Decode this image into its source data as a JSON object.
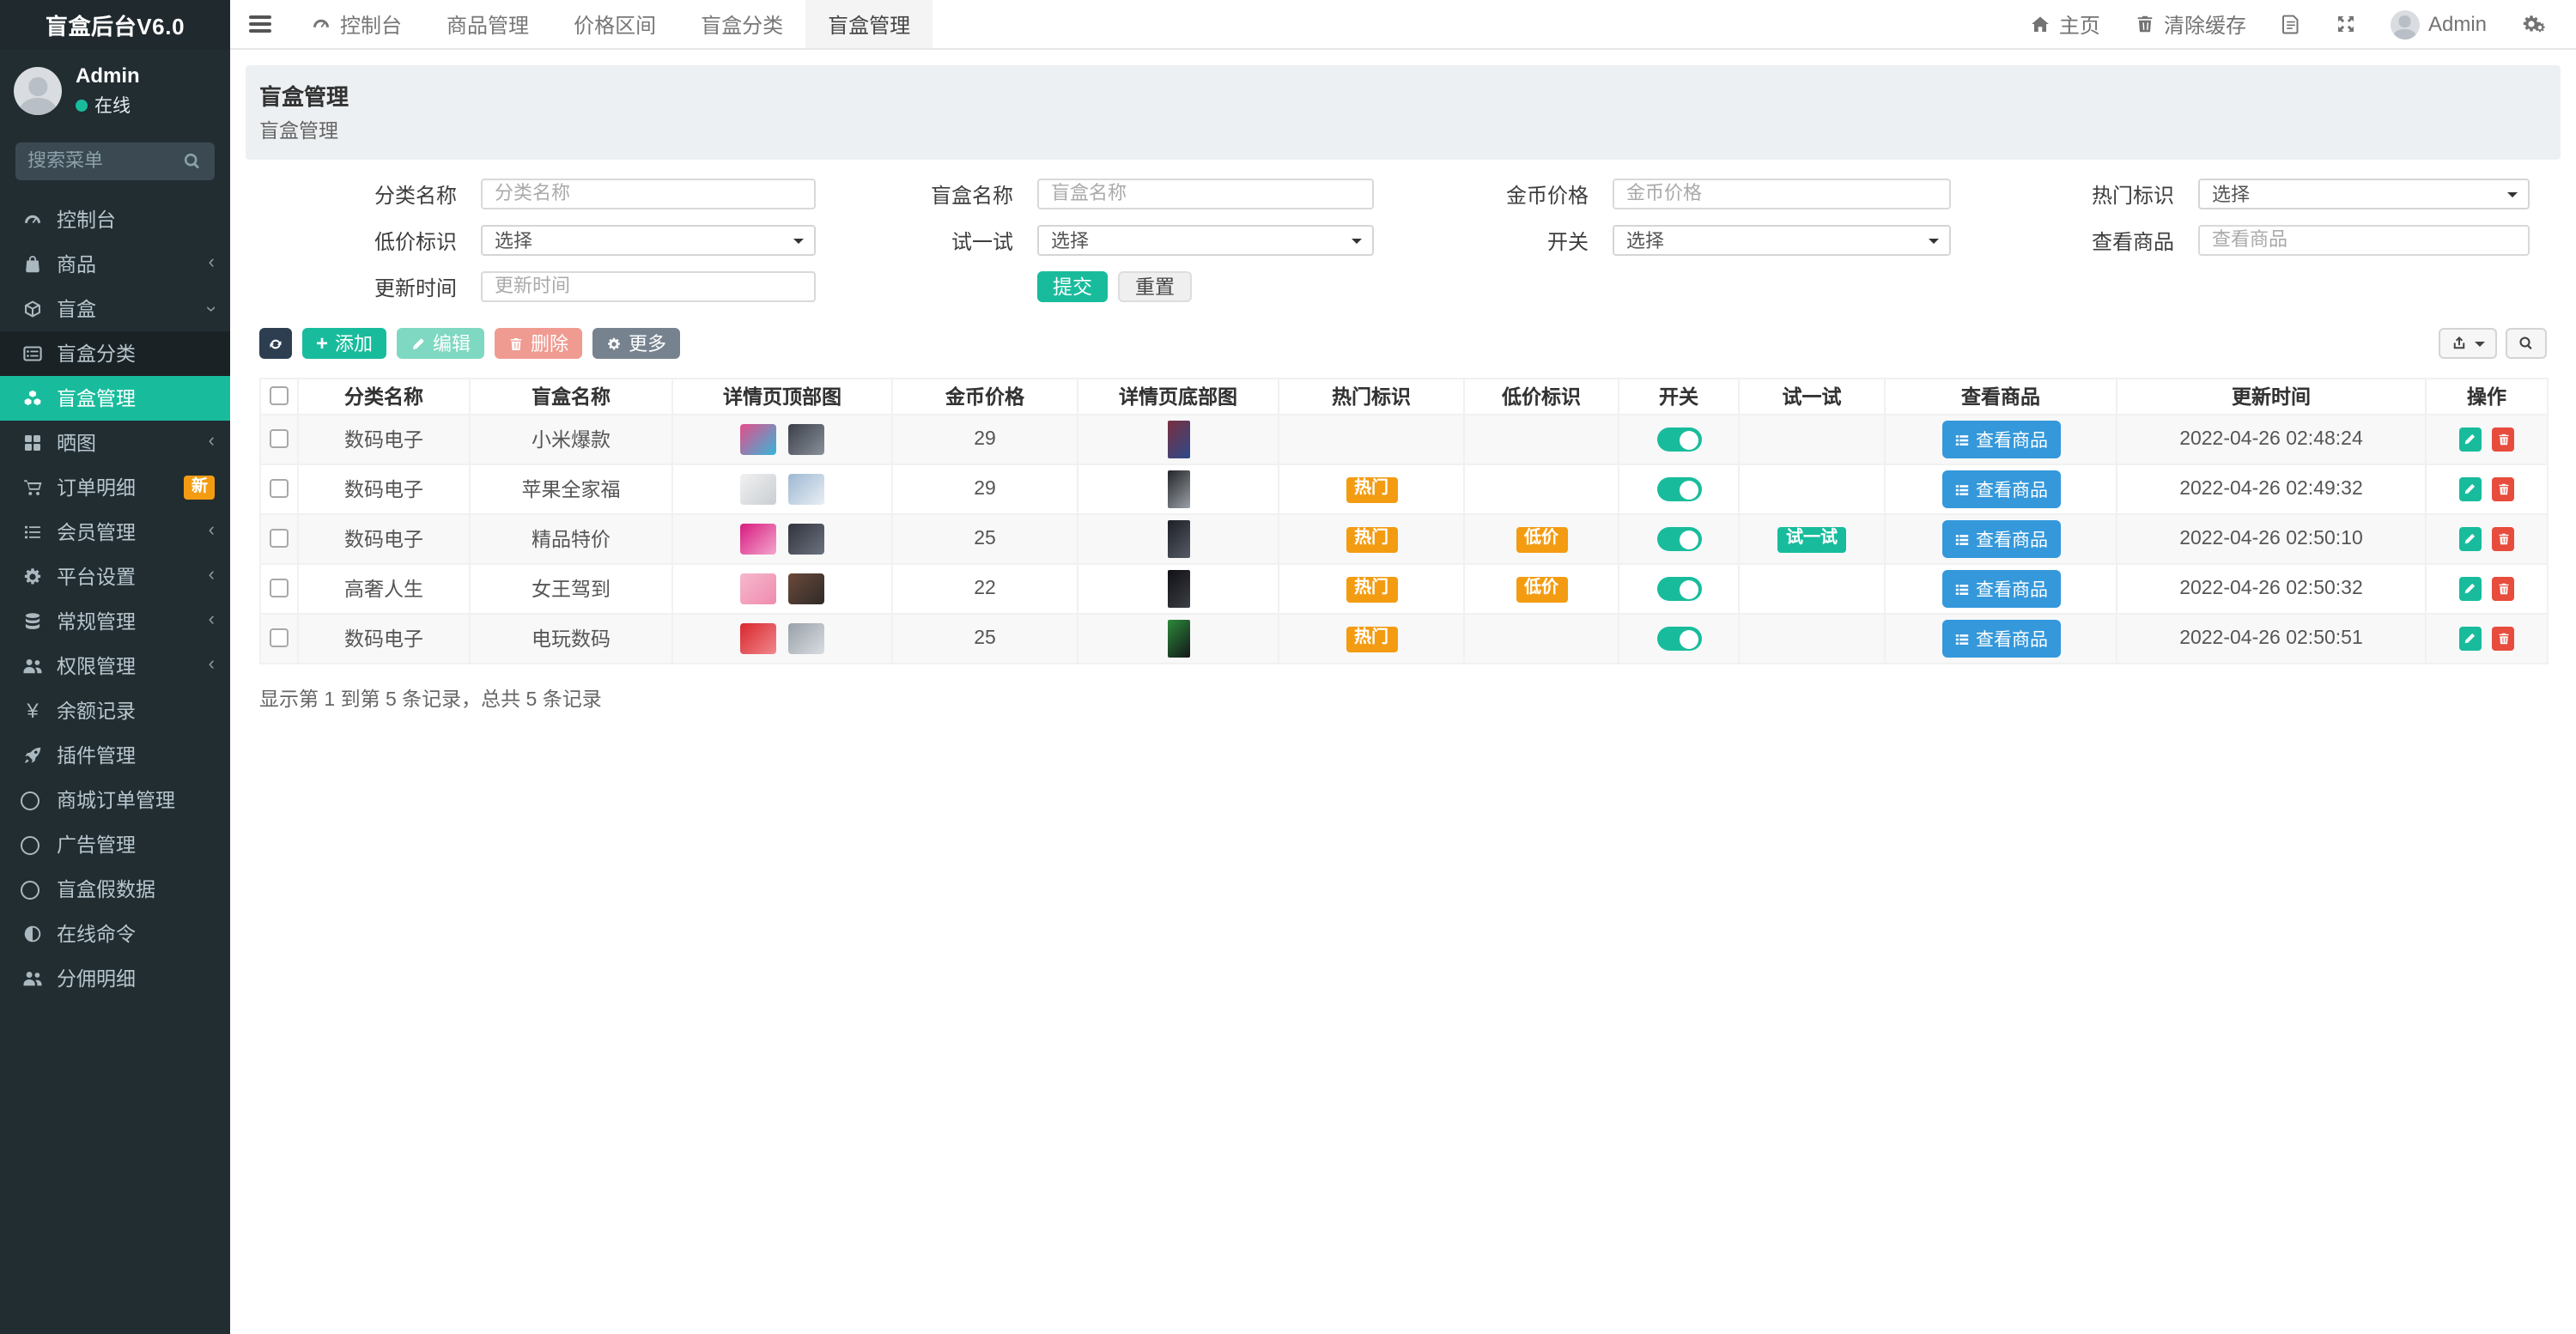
{
  "app": {
    "title": "盲盒后台V6.0"
  },
  "theme": {
    "accent": "#18bc9c",
    "warning": "#f39c12",
    "danger": "#e74c3c",
    "info": "#3498db",
    "dark": "#2c3e50",
    "sidebar_bg": "#222d32"
  },
  "sidebar": {
    "user": {
      "name": "Admin",
      "status": "在线"
    },
    "search_placeholder": "搜索菜单",
    "items": [
      {
        "label": "控制台",
        "icon": "gauge"
      },
      {
        "label": "商品",
        "icon": "bag",
        "chevron": "left"
      },
      {
        "label": "盲盒",
        "icon": "cube",
        "chevron": "down"
      },
      {
        "label": "盲盒分类",
        "icon": "list-alt",
        "submenu": true
      },
      {
        "label": "盲盒管理",
        "icon": "cubes",
        "submenu": true,
        "active": true
      },
      {
        "label": "晒图",
        "icon": "gallery",
        "chevron": "left"
      },
      {
        "label": "订单明细",
        "icon": "cart",
        "badge": "新"
      },
      {
        "label": "会员管理",
        "icon": "list",
        "chevron": "left"
      },
      {
        "label": "平台设置",
        "icon": "gear",
        "chevron": "left"
      },
      {
        "label": "常规管理",
        "icon": "database",
        "chevron": "left"
      },
      {
        "label": "权限管理",
        "icon": "users",
        "chevron": "left"
      },
      {
        "label": "余额记录",
        "icon": "yen"
      },
      {
        "label": "插件管理",
        "icon": "rocket"
      },
      {
        "label": "商城订单管理",
        "icon": "circle"
      },
      {
        "label": "广告管理",
        "icon": "circle"
      },
      {
        "label": "盲盒假数据",
        "icon": "circle"
      },
      {
        "label": "在线命令",
        "icon": "adjust"
      },
      {
        "label": "分佣明细",
        "icon": "users"
      }
    ]
  },
  "navbar": {
    "tabs": [
      {
        "label": "控制台",
        "icon": "gauge"
      },
      {
        "label": "商品管理"
      },
      {
        "label": "价格区间"
      },
      {
        "label": "盲盒分类"
      },
      {
        "label": "盲盒管理",
        "active": true
      }
    ],
    "right": {
      "home": "主页",
      "clear_cache": "清除缓存",
      "user": "Admin"
    }
  },
  "page": {
    "title": "盲盒管理",
    "subtitle": "盲盒管理"
  },
  "filters": {
    "fields": [
      {
        "row": 1,
        "col": 1,
        "label": "分类名称",
        "type": "input",
        "placeholder": "分类名称"
      },
      {
        "row": 1,
        "col": 2,
        "label": "盲盒名称",
        "type": "input",
        "placeholder": "盲盒名称"
      },
      {
        "row": 1,
        "col": 3,
        "label": "金币价格",
        "type": "input",
        "placeholder": "金币价格"
      },
      {
        "row": 1,
        "col": 4,
        "label": "热门标识",
        "type": "select",
        "value": "选择"
      },
      {
        "row": 2,
        "col": 1,
        "label": "低价标识",
        "type": "select",
        "value": "选择"
      },
      {
        "row": 2,
        "col": 2,
        "label": "试一试",
        "type": "select",
        "value": "选择"
      },
      {
        "row": 2,
        "col": 3,
        "label": "开关",
        "type": "select",
        "value": "选择"
      },
      {
        "row": 2,
        "col": 4,
        "label": "查看商品",
        "type": "input",
        "placeholder": "查看商品"
      },
      {
        "row": 3,
        "col": 1,
        "label": "更新时间",
        "type": "input",
        "placeholder": "更新时间"
      }
    ],
    "submit": "提交",
    "reset": "重置"
  },
  "toolbar": {
    "add": "添加",
    "edit": "编辑",
    "delete": "删除",
    "more": "更多"
  },
  "table": {
    "columns": [
      "分类名称",
      "盲盒名称",
      "详情页顶部图",
      "金币价格",
      "详情页底部图",
      "热门标识",
      "低价标识",
      "开关",
      "试一试",
      "查看商品",
      "更新时间",
      "操作"
    ],
    "hot_label": "热门",
    "low_label": "低价",
    "try_label": "试一试",
    "view_goods_label": "查看商品",
    "rows": [
      {
        "category": "数码电子",
        "name": "小米爆款",
        "price": "29",
        "hot": false,
        "low": false,
        "switch_on": true,
        "try_it": false,
        "updated": "2022-04-26 02:48:24",
        "thumbs": {
          "top": [
            [
              "#e84d8a",
              "#35b6d9"
            ],
            [
              "#3a3f48",
              "#8a909a"
            ]
          ],
          "bottom": [
            "#7a2f3e",
            "#2b4a8b"
          ]
        }
      },
      {
        "category": "数码电子",
        "name": "苹果全家福",
        "price": "29",
        "hot": true,
        "low": false,
        "switch_on": true,
        "try_it": false,
        "updated": "2022-04-26 02:49:32",
        "thumbs": {
          "top": [
            [
              "#f1f1f1",
              "#c9ced3"
            ],
            [
              "#9db8d2",
              "#e8eef4"
            ]
          ],
          "bottom": [
            "#24262b",
            "#9aa0a6"
          ]
        }
      },
      {
        "category": "数码电子",
        "name": "精品特价",
        "price": "25",
        "hot": true,
        "low": true,
        "switch_on": true,
        "try_it": true,
        "updated": "2022-04-26 02:50:10",
        "thumbs": {
          "top": [
            [
              "#d81b7f",
              "#f3a6cd"
            ],
            [
              "#32343c",
              "#6b7280"
            ]
          ],
          "bottom": [
            "#1d1f26",
            "#555b66"
          ]
        }
      },
      {
        "category": "高奢人生",
        "name": "女王驾到",
        "price": "22",
        "hot": true,
        "low": true,
        "switch_on": true,
        "try_it": false,
        "updated": "2022-04-26 02:50:32",
        "thumbs": {
          "top": [
            [
              "#f5b8cc",
              "#f08bb0"
            ],
            [
              "#6b4a3a",
              "#2f2a28"
            ]
          ],
          "bottom": [
            "#101014",
            "#3c3f46"
          ]
        }
      },
      {
        "category": "数码电子",
        "name": "电玩数码",
        "price": "25",
        "hot": true,
        "low": false,
        "switch_on": true,
        "try_it": false,
        "updated": "2022-04-26 02:50:51",
        "thumbs": {
          "top": [
            [
              "#d8262c",
              "#f0888c"
            ],
            [
              "#9aa0a8",
              "#d8dde2"
            ]
          ],
          "bottom": [
            "#2c8a3a",
            "#14161a"
          ]
        }
      }
    ],
    "summary": "显示第 1 到第 5 条记录，总共 5 条记录"
  }
}
